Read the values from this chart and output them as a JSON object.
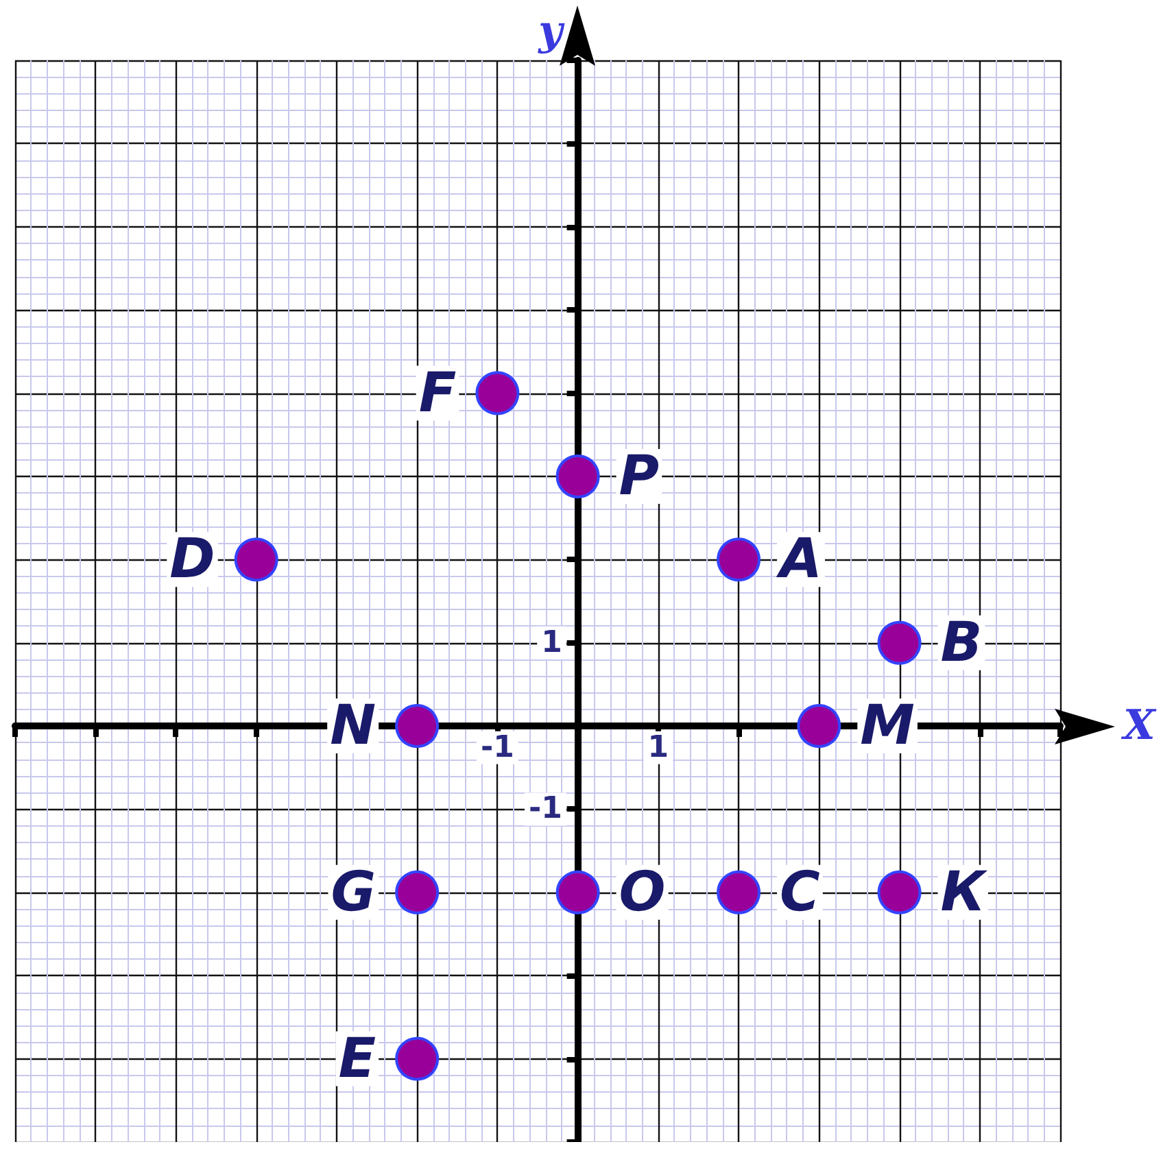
{
  "chart_data": {
    "type": "scatter",
    "xlabel": "X",
    "ylabel": "y",
    "x": [
      -1,
      0,
      -4,
      2,
      4,
      -2,
      3,
      -2,
      0,
      2,
      4,
      -2
    ],
    "values": [
      4,
      3,
      2,
      2,
      1,
      0,
      0,
      -2,
      -2,
      -2,
      -2,
      -4
    ],
    "value_labels": [
      "F",
      "P",
      "D",
      "A",
      "B",
      "N",
      "M",
      "G",
      "O",
      "C",
      "К",
      "E"
    ],
    "color": "#990099",
    "marker": "circle",
    "grid": true,
    "xlim": [
      -7,
      6
    ],
    "ylim": [
      -5,
      8
    ],
    "xticks": [
      {
        "value": -7,
        "label": null
      },
      {
        "value": -6,
        "label": null
      },
      {
        "value": -5,
        "label": null
      },
      {
        "value": -4,
        "label": null
      },
      {
        "value": -3,
        "label": null
      },
      {
        "value": -2,
        "label": null
      },
      -1,
      {
        "value": 0,
        "label": null
      },
      1,
      {
        "value": 2,
        "label": null
      },
      {
        "value": 3,
        "label": null
      },
      {
        "value": 4,
        "label": null
      },
      {
        "value": 5,
        "label": null
      },
      {
        "value": 6,
        "label": null
      }
    ],
    "yticks": [
      {
        "value": -5,
        "label": null
      },
      {
        "value": -4,
        "label": null
      },
      {
        "value": -3,
        "label": null
      },
      {
        "value": -2,
        "label": null
      },
      -1,
      {
        "value": 0,
        "label": null
      },
      1,
      {
        "value": 2,
        "label": null
      },
      {
        "value": 3,
        "label": null
      },
      {
        "value": 4,
        "label": null
      },
      {
        "value": 5,
        "label": null
      },
      {
        "value": 6,
        "label": null
      },
      {
        "value": 7,
        "label": null
      },
      {
        "value": 8,
        "label": null
      }
    ]
  }
}
